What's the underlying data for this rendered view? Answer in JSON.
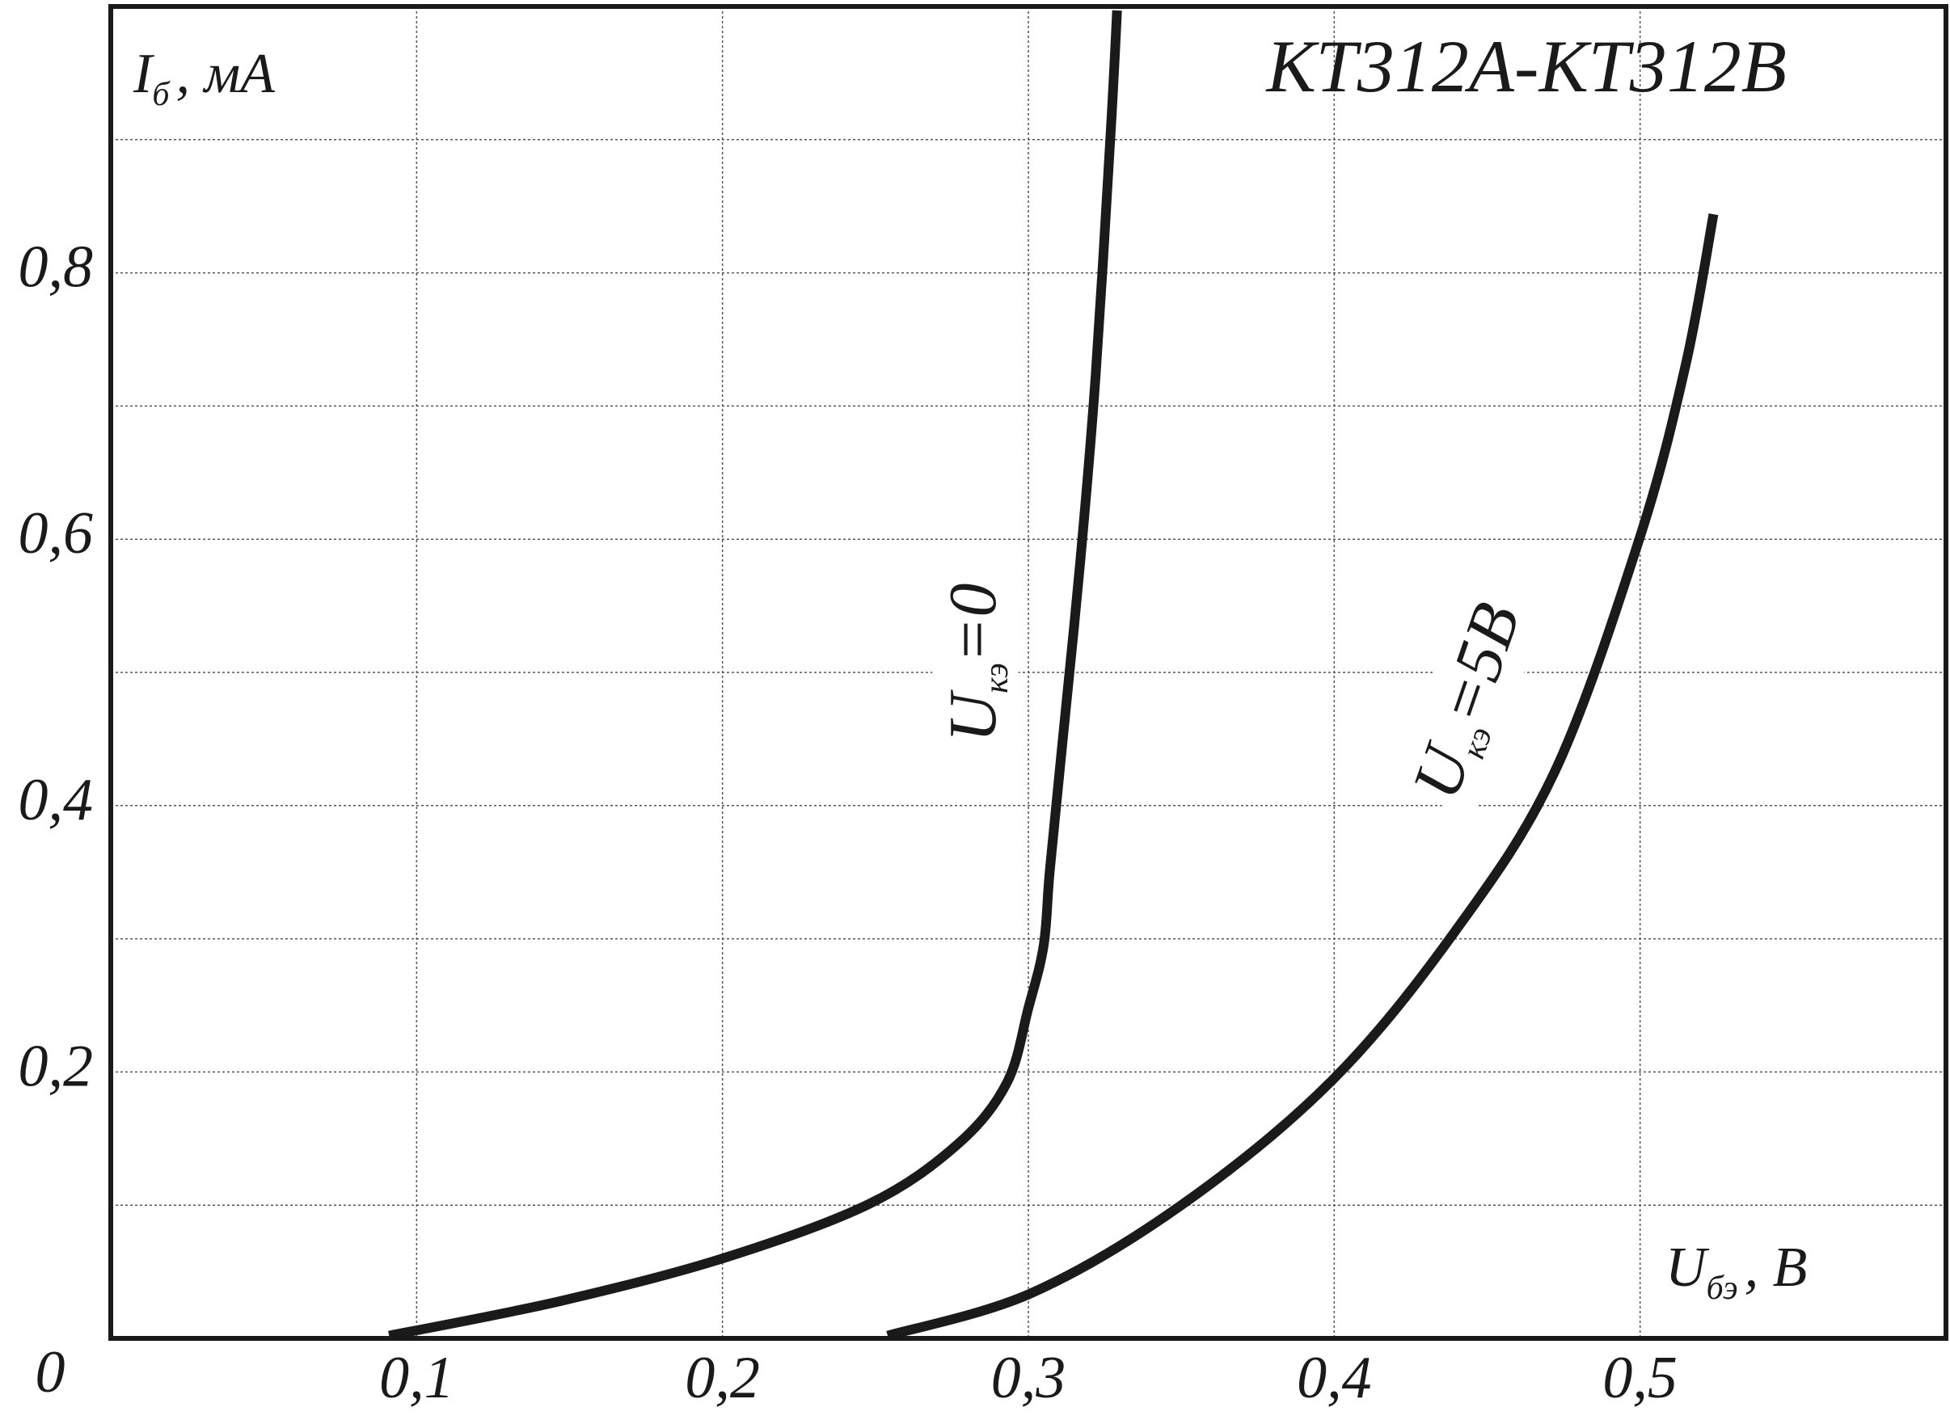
{
  "chart_data": {
    "type": "line",
    "title": "КТ312А-КТ312В",
    "x_label": {
      "main": "U",
      "sub": "бэ",
      "unit": ", В"
    },
    "y_label": {
      "main": "I",
      "sub": "б",
      "unit": ", мА"
    },
    "xlim": [
      0,
      0.6
    ],
    "ylim": [
      0,
      1.0
    ],
    "xticks": [
      {
        "value": 0.1,
        "label": "0,1"
      },
      {
        "value": 0.2,
        "label": "0,2"
      },
      {
        "value": 0.3,
        "label": "0,3"
      },
      {
        "value": 0.4,
        "label": "0,4"
      },
      {
        "value": 0.5,
        "label": "0,5"
      }
    ],
    "yticks": [
      {
        "value": 0,
        "label": "0"
      },
      {
        "value": 0.2,
        "label": "0,2"
      },
      {
        "value": 0.4,
        "label": "0,4"
      },
      {
        "value": 0.6,
        "label": "0,6"
      },
      {
        "value": 0.8,
        "label": "0,8"
      }
    ],
    "y_minor_ticks": [
      0.1,
      0.3,
      0.5,
      0.7,
      0.9
    ],
    "grid": true,
    "series": [
      {
        "label": {
          "main": "U",
          "sub": "кэ",
          "rest": "=0"
        },
        "color": "#1a1a1a",
        "x": [
          0.091,
          0.147,
          0.2,
          0.248,
          0.277,
          0.293,
          0.3,
          0.305,
          0.307,
          0.311,
          0.317,
          0.322,
          0.327,
          0.329
        ],
        "values": [
          0.002,
          0.028,
          0.06,
          0.101,
          0.146,
          0.192,
          0.248,
          0.295,
          0.351,
          0.444,
          0.584,
          0.723,
          0.909,
          0.997
        ]
      },
      {
        "label": {
          "main": "U",
          "sub": "кэ",
          "rest": "=5В"
        },
        "color": "#1a1a1a",
        "x": [
          0.254,
          0.301,
          0.35,
          0.399,
          0.439,
          0.472,
          0.5,
          0.515,
          0.524
        ],
        "values": [
          0.002,
          0.034,
          0.1,
          0.193,
          0.304,
          0.425,
          0.602,
          0.732,
          0.844
        ]
      }
    ]
  }
}
